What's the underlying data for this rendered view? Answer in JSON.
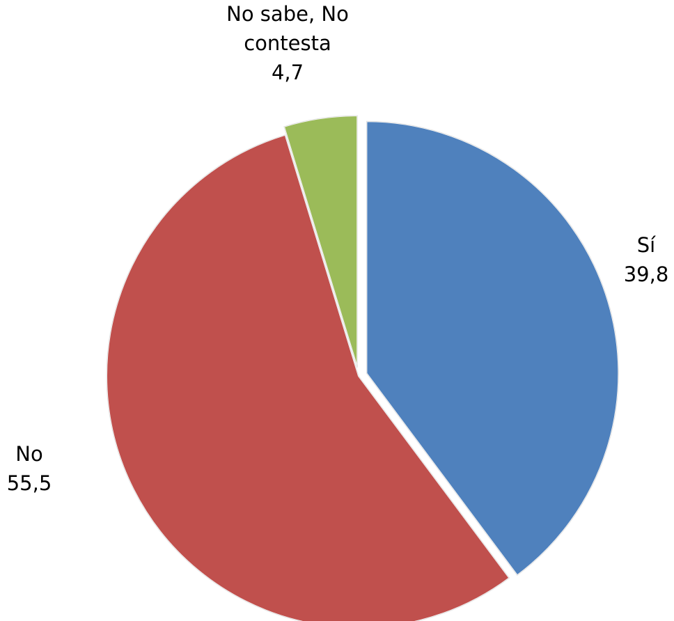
{
  "chart_data": {
    "type": "pie",
    "categories": [
      "Sí",
      "No",
      "No sabe, No contesta"
    ],
    "values": [
      39.8,
      55.5,
      4.7
    ],
    "value_labels": [
      "39,8",
      "55,5",
      "4,7"
    ],
    "label_lines": [
      [
        "Sí",
        "39,8"
      ],
      [
        "No",
        "55,5"
      ],
      [
        "No sabe, No",
        "contesta",
        "4,7"
      ]
    ],
    "colors": [
      "#4F81BD",
      "#C0504D",
      "#9BBB59"
    ],
    "start_angle": "12 o'clock",
    "direction": "clockwise",
    "exploded": true,
    "legend": "none",
    "title": ""
  }
}
